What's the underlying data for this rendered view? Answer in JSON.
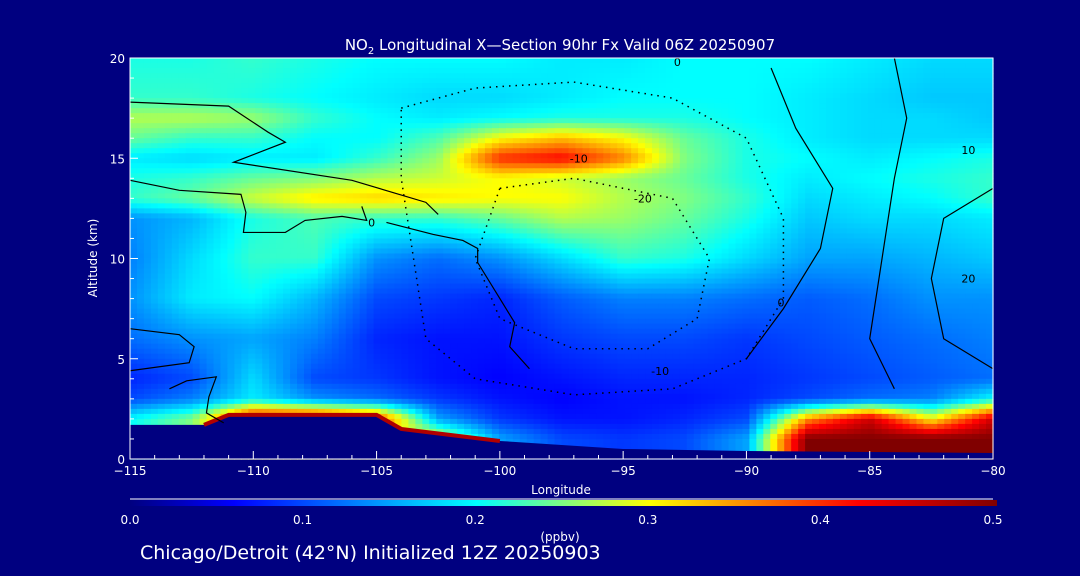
{
  "chart_data": {
    "type": "heatmap",
    "title_main": "NO",
    "title_sub": "2",
    "title_rest": " Longitudinal X—Section 90hr  Fx Valid 06Z 20250907",
    "xlabel": "Longitude",
    "ylabel": "Altitude (km)",
    "xlim": [
      -115,
      -80
    ],
    "ylim": [
      0,
      20
    ],
    "xticks": [
      -115,
      -110,
      -105,
      -100,
      -95,
      -90,
      -85,
      -80
    ],
    "xtick_labels": [
      "−115",
      "−110",
      "−105",
      "−100",
      "−95",
      "−90",
      "−85",
      "−80"
    ],
    "yticks": [
      0,
      5,
      10,
      15,
      20
    ],
    "ytick_labels": [
      "0",
      "5",
      "10",
      "15",
      "20"
    ],
    "colorbar": {
      "label": "(ppbv)",
      "range": [
        0.0,
        0.5
      ],
      "tick_labels": [
        "0.0",
        "0.1",
        "0.2",
        "0.3",
        "0.4",
        "0.5"
      ],
      "stops": [
        [
          0.0,
          "#000080"
        ],
        [
          0.06,
          "#0000ff"
        ],
        [
          0.2,
          "#00ffff"
        ],
        [
          0.25,
          "#80ff80"
        ],
        [
          0.3,
          "#ffff00"
        ],
        [
          0.42,
          "#ff0000"
        ],
        [
          0.5,
          "#800000"
        ]
      ]
    },
    "lon": [
      -115,
      -112.5,
      -110,
      -107.5,
      -105,
      -102.5,
      -100,
      -97.5,
      -95,
      -92.5,
      -90,
      -87.5,
      -85,
      -82.5,
      -80
    ],
    "alt": [
      0,
      1,
      2,
      3,
      4,
      6,
      8,
      10,
      12,
      13,
      14,
      15,
      16,
      17,
      18,
      20
    ],
    "values": [
      [
        0.2,
        0.25,
        0.3,
        0.3,
        0.3,
        0.3,
        0.15,
        0.1,
        0.09,
        0.1,
        0.15,
        0.5,
        0.5,
        0.5,
        0.5
      ],
      [
        0.2,
        0.25,
        0.3,
        0.3,
        0.3,
        0.3,
        0.15,
        0.1,
        0.09,
        0.1,
        0.15,
        0.5,
        0.5,
        0.5,
        0.5
      ],
      [
        0.2,
        0.25,
        0.45,
        0.45,
        0.4,
        0.15,
        0.09,
        0.07,
        0.07,
        0.08,
        0.1,
        0.35,
        0.45,
        0.3,
        0.45
      ],
      [
        0.1,
        0.13,
        0.19,
        0.14,
        0.12,
        0.09,
        0.07,
        0.06,
        0.07,
        0.07,
        0.08,
        0.1,
        0.12,
        0.13,
        0.2
      ],
      [
        0.08,
        0.1,
        0.18,
        0.1,
        0.09,
        0.07,
        0.06,
        0.07,
        0.08,
        0.08,
        0.08,
        0.09,
        0.1,
        0.11,
        0.12
      ],
      [
        0.12,
        0.14,
        0.15,
        0.13,
        0.08,
        0.07,
        0.07,
        0.09,
        0.1,
        0.1,
        0.09,
        0.1,
        0.11,
        0.12,
        0.13
      ],
      [
        0.14,
        0.19,
        0.2,
        0.16,
        0.1,
        0.09,
        0.08,
        0.11,
        0.13,
        0.13,
        0.12,
        0.11,
        0.12,
        0.14,
        0.14
      ],
      [
        0.13,
        0.18,
        0.22,
        0.22,
        0.14,
        0.12,
        0.14,
        0.18,
        0.22,
        0.21,
        0.18,
        0.15,
        0.15,
        0.16,
        0.17
      ],
      [
        0.14,
        0.16,
        0.21,
        0.23,
        0.22,
        0.22,
        0.24,
        0.27,
        0.26,
        0.24,
        0.21,
        0.17,
        0.18,
        0.18,
        0.19
      ],
      [
        0.22,
        0.24,
        0.28,
        0.31,
        0.32,
        0.31,
        0.3,
        0.3,
        0.27,
        0.25,
        0.22,
        0.18,
        0.19,
        0.2,
        0.22
      ],
      [
        0.21,
        0.22,
        0.24,
        0.25,
        0.27,
        0.28,
        0.3,
        0.28,
        0.26,
        0.24,
        0.21,
        0.19,
        0.2,
        0.21,
        0.22
      ],
      [
        0.19,
        0.18,
        0.19,
        0.19,
        0.22,
        0.26,
        0.4,
        0.42,
        0.36,
        0.25,
        0.21,
        0.2,
        0.19,
        0.2,
        0.21
      ],
      [
        0.24,
        0.22,
        0.22,
        0.2,
        0.2,
        0.23,
        0.3,
        0.33,
        0.3,
        0.24,
        0.21,
        0.19,
        0.18,
        0.18,
        0.18
      ],
      [
        0.27,
        0.27,
        0.26,
        0.22,
        0.2,
        0.19,
        0.2,
        0.21,
        0.21,
        0.21,
        0.2,
        0.19,
        0.18,
        0.18,
        0.17
      ],
      [
        0.22,
        0.22,
        0.21,
        0.2,
        0.19,
        0.18,
        0.18,
        0.19,
        0.2,
        0.2,
        0.2,
        0.19,
        0.18,
        0.17,
        0.17
      ],
      [
        0.21,
        0.21,
        0.22,
        0.21,
        0.2,
        0.2,
        0.2,
        0.19,
        0.19,
        0.2,
        0.2,
        0.2,
        0.19,
        0.18,
        0.18
      ]
    ],
    "terrain": [
      [
        -115,
        1.7
      ],
      [
        -112,
        1.7
      ],
      [
        -111,
        2.2
      ],
      [
        -105,
        2.2
      ],
      [
        -104,
        1.5
      ],
      [
        -100,
        0.9
      ],
      [
        -95,
        0.5
      ],
      [
        -90,
        0.4
      ],
      [
        -85,
        0.35
      ],
      [
        -80,
        0.3
      ]
    ],
    "contours": [
      {
        "level": "-10",
        "style": "dotted",
        "points": [
          [
            -104,
            17.5
          ],
          [
            -101,
            18.5
          ],
          [
            -97,
            18.8
          ],
          [
            -93,
            18
          ],
          [
            -90,
            16
          ],
          [
            -88.5,
            12
          ],
          [
            -88.5,
            8
          ],
          [
            -90,
            5
          ],
          [
            -93,
            3.5
          ],
          [
            -97,
            3.2
          ],
          [
            -101,
            4
          ],
          [
            -103,
            6
          ],
          [
            -103.5,
            10
          ],
          [
            -104,
            14
          ],
          [
            -104,
            17.5
          ]
        ]
      },
      {
        "level": "-20",
        "style": "dotted",
        "points": [
          [
            -100,
            13.5
          ],
          [
            -97,
            14
          ],
          [
            -93,
            13
          ],
          [
            -91.5,
            10
          ],
          [
            -92,
            7
          ],
          [
            -94,
            5.5
          ],
          [
            -97,
            5.5
          ],
          [
            -100,
            7
          ],
          [
            -101,
            10
          ],
          [
            -100,
            13.5
          ]
        ]
      },
      {
        "level": "0",
        "style": "solid",
        "points": [
          [
            -115,
            17.8
          ],
          [
            -111,
            17.6
          ],
          [
            -109.4,
            16.3
          ],
          [
            -108.7,
            15.8
          ],
          [
            -110.8,
            14.8
          ],
          [
            -106,
            13.9
          ],
          [
            -103,
            12.8
          ],
          [
            -102.5,
            12.2
          ]
        ]
      },
      {
        "level": "0",
        "style": "solid",
        "points": [
          [
            -115,
            13.9
          ],
          [
            -113,
            13.4
          ],
          [
            -110.5,
            13.2
          ],
          [
            -110.3,
            12.3
          ],
          [
            -110.4,
            11.3
          ],
          [
            -108.7,
            11.3
          ],
          [
            -107.9,
            11.9
          ],
          [
            -106.4,
            12.1
          ],
          [
            -105.4,
            11.9
          ],
          [
            -105.6,
            12.6
          ]
        ]
      },
      {
        "level": "0",
        "style": "solid",
        "points": [
          [
            -104.6,
            11.8
          ],
          [
            -102.7,
            11.2
          ],
          [
            -101.5,
            10.9
          ],
          [
            -100.9,
            10.5
          ],
          [
            -100.9,
            9.8
          ],
          [
            -99.9,
            7.8
          ],
          [
            -99.4,
            6.8
          ],
          [
            -99.6,
            5.6
          ],
          [
            -98.8,
            4.5
          ]
        ]
      },
      {
        "level": "0",
        "style": "solid",
        "points": [
          [
            -89,
            19.5
          ],
          [
            -88,
            16.5
          ],
          [
            -86.5,
            13.5
          ],
          [
            -87,
            10.5
          ],
          [
            -88.5,
            7.5
          ],
          [
            -90,
            5
          ]
        ]
      },
      {
        "level": "10",
        "style": "solid",
        "points": [
          [
            -84,
            20
          ],
          [
            -83.5,
            17
          ],
          [
            -84,
            14
          ],
          [
            -84.5,
            10
          ],
          [
            -85,
            6
          ],
          [
            -84,
            3.5
          ]
        ]
      },
      {
        "level": "20",
        "style": "solid",
        "points": [
          [
            -80,
            13.5
          ],
          [
            -82,
            12
          ],
          [
            -82.5,
            9
          ],
          [
            -82,
            6
          ],
          [
            -80,
            4.5
          ]
        ]
      },
      {
        "level": "0",
        "style": "solid",
        "points": [
          [
            -115,
            6.5
          ],
          [
            -113,
            6.2
          ],
          [
            -112.4,
            5.6
          ],
          [
            -112.6,
            4.8
          ],
          [
            -115,
            4.4
          ]
        ]
      },
      {
        "level": "0",
        "style": "solid",
        "points": [
          [
            -113.4,
            3.5
          ],
          [
            -112.7,
            3.9
          ],
          [
            -111.5,
            4.1
          ],
          [
            -111.8,
            3.1
          ],
          [
            -111.9,
            2.3
          ],
          [
            -111.2,
            1.8
          ]
        ]
      }
    ],
    "contour_labels": [
      {
        "text": "0",
        "lon": -105.2,
        "lat_alt": 11.6
      },
      {
        "text": "-10",
        "lon": -96.8,
        "lat_alt": 14.8
      },
      {
        "text": "-20",
        "lon": -94.2,
        "lat_alt": 12.8
      },
      {
        "text": "-10",
        "lon": -93.5,
        "lat_alt": 4.2
      },
      {
        "text": "0",
        "lon": -88.6,
        "lat_alt": 7.6
      },
      {
        "text": "10",
        "lon": -81,
        "lat_alt": 15.2
      },
      {
        "text": "20",
        "lon": -81,
        "lat_alt": 8.8
      },
      {
        "text": "0",
        "lon": -92.8,
        "lat_alt": 19.6
      }
    ]
  },
  "footer": "Chicago/Detroit (42°N) Initialized 12Z 20250903"
}
